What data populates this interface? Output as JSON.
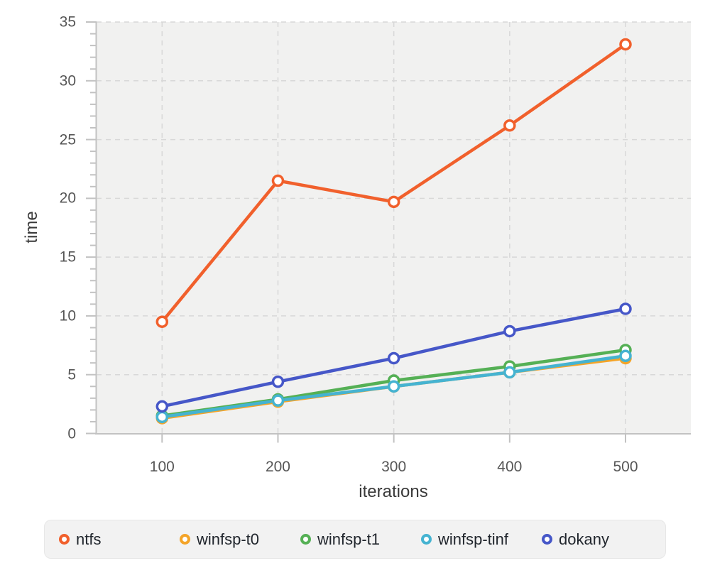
{
  "chart_data": {
    "type": "line",
    "title": "",
    "xlabel": "iterations",
    "ylabel": "time",
    "x": [
      100,
      200,
      300,
      400,
      500
    ],
    "series": [
      {
        "name": "ntfs",
        "color": "#f1602c",
        "values": [
          9.5,
          21.5,
          19.7,
          26.2,
          33.1
        ]
      },
      {
        "name": "winfsp-t0",
        "color": "#f4a428",
        "values": [
          1.3,
          2.7,
          4.0,
          5.2,
          6.4
        ]
      },
      {
        "name": "winfsp-t1",
        "color": "#55b055",
        "values": [
          1.5,
          2.9,
          4.5,
          5.7,
          7.1
        ]
      },
      {
        "name": "winfsp-tinf",
        "color": "#45b3d1",
        "values": [
          1.4,
          2.8,
          4.0,
          5.2,
          6.6
        ]
      },
      {
        "name": "dokany",
        "color": "#4657c8",
        "values": [
          2.3,
          4.4,
          6.4,
          8.7,
          10.6
        ]
      }
    ],
    "xticks": [
      100,
      200,
      300,
      400,
      500
    ],
    "yticks": [
      0,
      5,
      10,
      15,
      20,
      25,
      30,
      35
    ],
    "y_minor_tick_step": 1,
    "ylim": [
      0,
      35
    ],
    "grid": true,
    "grid_style": "dashed",
    "plot_background": "#f1f1f0",
    "grid_color": "#d8d8d8",
    "axis_color": "#c2c2c2",
    "marker": "open-circle",
    "legend_position": "bottom"
  }
}
